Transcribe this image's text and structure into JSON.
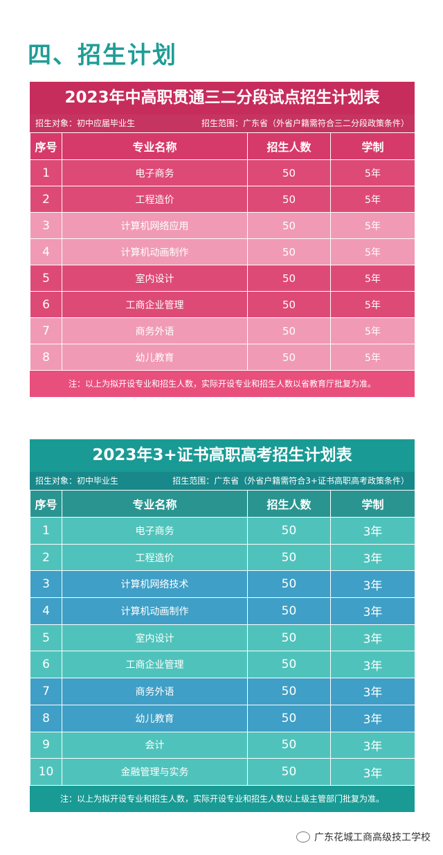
{
  "section_title": "四、招生计划",
  "plan_a": {
    "title": "2023年中高职贯通三二分段试点招生计划表",
    "target": "招生对象：初中应届毕业生",
    "range": "招生范围：广东省（外省户籍需符合三二分段政策条件）",
    "headers": [
      "序号",
      "专业名称",
      "招生人数",
      "学制"
    ],
    "rows": [
      [
        "1",
        "电子商务",
        "50",
        "5年"
      ],
      [
        "2",
        "工程造价",
        "50",
        "5年"
      ],
      [
        "3",
        "计算机网络应用",
        "50",
        "5年"
      ],
      [
        "4",
        "计算机动画制作",
        "50",
        "5年"
      ],
      [
        "5",
        "室内设计",
        "50",
        "5年"
      ],
      [
        "6",
        "工商企业管理",
        "50",
        "5年"
      ],
      [
        "7",
        "商务外语",
        "50",
        "5年"
      ],
      [
        "8",
        "幼儿教育",
        "50",
        "5年"
      ]
    ],
    "note": "注：以上为拟开设专业和招生人数，实际开设专业和招生人数以省教育厅批复为准。"
  },
  "plan_b": {
    "title": "2023年3+证书高职高考招生计划表",
    "target": "招生对象：初中毕业生",
    "range": "招生范围：广东省（外省户籍需符合3+证书高职高考政策条件）",
    "headers": [
      "序号",
      "专业名称",
      "招生人数",
      "学制"
    ],
    "rows": [
      [
        "1",
        "电子商务",
        "50",
        "3年"
      ],
      [
        "2",
        "工程造价",
        "50",
        "3年"
      ],
      [
        "3",
        "计算机网络技术",
        "50",
        "3年"
      ],
      [
        "4",
        "计算机动画制作",
        "50",
        "3年"
      ],
      [
        "5",
        "室内设计",
        "50",
        "3年"
      ],
      [
        "6",
        "工商企业管理",
        "50",
        "3年"
      ],
      [
        "7",
        "商务外语",
        "50",
        "3年"
      ],
      [
        "8",
        "幼儿教育",
        "50",
        "3年"
      ],
      [
        "9",
        "会计",
        "50",
        "3年"
      ],
      [
        "10",
        "金融管理与实务",
        "50",
        "3年"
      ]
    ],
    "note": "注：以上为拟开设专业和招生人数，实际开设专业和招生人数以上级主管部门批复为准。"
  },
  "watermark": "广东花城工商高级技工学校",
  "colors": {
    "title_teal": "#1f9d96",
    "pink_dark": "#de4a76",
    "pink_light": "#f09ab6",
    "teal_light": "#4fc3bb",
    "teal_blue": "#3f9fc6"
  }
}
